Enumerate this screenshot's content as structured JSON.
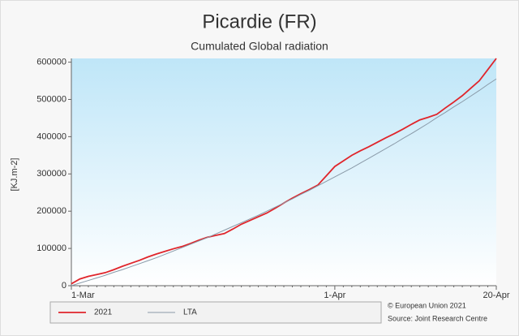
{
  "chart_data": {
    "type": "line",
    "title": "Picardie (FR)",
    "subtitle": "Cumulated Global radiation",
    "y_label": "[KJ.m-2]",
    "x": [
      "1-Mar",
      null,
      null,
      null,
      null,
      null,
      null,
      null,
      null,
      null,
      null,
      null,
      null,
      null,
      null,
      null,
      null,
      null,
      null,
      null,
      null,
      null,
      null,
      null,
      null,
      null,
      null,
      null,
      null,
      null,
      null,
      "1-Apr",
      null,
      null,
      null,
      null,
      null,
      null,
      null,
      null,
      null,
      null,
      null,
      null,
      null,
      null,
      null,
      null,
      null,
      null,
      "20-Apr"
    ],
    "series": [
      {
        "name": "2021",
        "color": "#e0252b",
        "values": [
          5000,
          18000,
          25000,
          30000,
          35000,
          43000,
          52000,
          60000,
          68000,
          77000,
          85000,
          92000,
          99000,
          105000,
          113000,
          122000,
          130000,
          135000,
          140000,
          152000,
          165000,
          175000,
          185000,
          195000,
          208000,
          222000,
          235000,
          247000,
          258000,
          270000,
          295000,
          320000,
          335000,
          350000,
          362000,
          373000,
          385000,
          397000,
          408000,
          420000,
          433000,
          445000,
          452000,
          460000,
          477000,
          493000,
          510000,
          530000,
          550000,
          580000,
          610000
        ]
      },
      {
        "name": "LTA",
        "color": "#8a9aa8",
        "values": [
          0,
          7000,
          14000,
          21000,
          28000,
          36000,
          43000,
          51000,
          59000,
          67000,
          75000,
          84000,
          93000,
          102000,
          111000,
          120000,
          129000,
          139000,
          149000,
          159000,
          169000,
          179000,
          189000,
          200000,
          211000,
          222000,
          233000,
          245000,
          256000,
          268000,
          280000,
          292000,
          304000,
          316000,
          329000,
          342000,
          355000,
          368000,
          381000,
          395000,
          408000,
          422000,
          436000,
          451000,
          465000,
          480000,
          494000,
          509000,
          524000,
          540000,
          555000
        ]
      }
    ],
    "ylim": [
      0,
      610000
    ],
    "yticks": [
      0,
      100000,
      200000,
      300000,
      400000,
      500000,
      600000
    ],
    "grid": false,
    "copyright": "© European Union 2021",
    "source": "Source: Joint Research Centre"
  }
}
